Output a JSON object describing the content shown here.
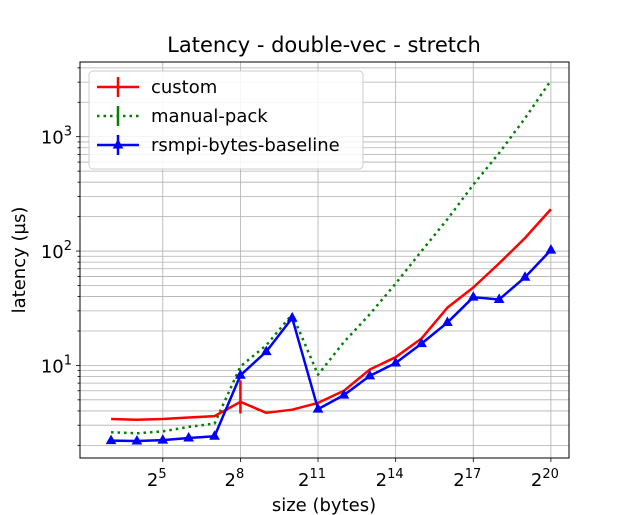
{
  "chart_data": {
    "type": "line",
    "title": "Latency - double-vec - stretch",
    "xlabel": "size (bytes)",
    "ylabel": "latency (µs)",
    "x_scale": "log2",
    "y_scale": "log10",
    "xlim_exponent": [
      1.8,
      20.7
    ],
    "ylim": [
      1.55,
      4500
    ],
    "grid": true,
    "legend_position": "top-left",
    "x_ticks": [
      {
        "base": "2",
        "exp": "5",
        "value": 32
      },
      {
        "base": "2",
        "exp": "8",
        "value": 256
      },
      {
        "base": "2",
        "exp": "11",
        "value": 2048
      },
      {
        "base": "2",
        "exp": "14",
        "value": 16384
      },
      {
        "base": "2",
        "exp": "17",
        "value": 131072
      },
      {
        "base": "2",
        "exp": "20",
        "value": 1048576
      }
    ],
    "y_ticks": [
      {
        "base": "10",
        "exp": "1",
        "value": 10
      },
      {
        "base": "10",
        "exp": "2",
        "value": 100
      },
      {
        "base": "10",
        "exp": "3",
        "value": 1000
      }
    ],
    "x": [
      8,
      16,
      32,
      64,
      128,
      256,
      512,
      1024,
      2048,
      4096,
      8192,
      16384,
      32768,
      65536,
      131072,
      262144,
      524288,
      1048576
    ],
    "series": [
      {
        "name": "custom",
        "color": "#ff0000",
        "line_style": "solid",
        "marker": "none",
        "values": [
          3.4,
          3.35,
          3.4,
          3.5,
          3.6,
          4.8,
          3.85,
          4.1,
          4.7,
          6.0,
          9.2,
          11.8,
          17.2,
          32.0,
          48.0,
          78.0,
          130.0,
          232.0
        ],
        "error_bars": [
          {
            "x": 256,
            "low": 3.8,
            "high": 7.4
          }
        ]
      },
      {
        "name": "manual-pack",
        "color": "#008000",
        "line_style": "dotted",
        "marker": "none",
        "values": [
          2.6,
          2.55,
          2.65,
          2.9,
          3.1,
          9.8,
          15.0,
          28.0,
          8.3,
          16.0,
          28.0,
          52.0,
          100.0,
          190.0,
          380.0,
          720.0,
          1450.0,
          3100.0
        ]
      },
      {
        "name": "rsmpi-bytes-baseline",
        "color": "#0000ff",
        "line_style": "solid",
        "marker": "triangle",
        "values": [
          2.2,
          2.18,
          2.22,
          2.32,
          2.4,
          8.2,
          13.2,
          26.0,
          4.15,
          5.5,
          8.1,
          10.5,
          15.5,
          23.7,
          39.5,
          37.7,
          59.0,
          102.0
        ]
      }
    ]
  }
}
